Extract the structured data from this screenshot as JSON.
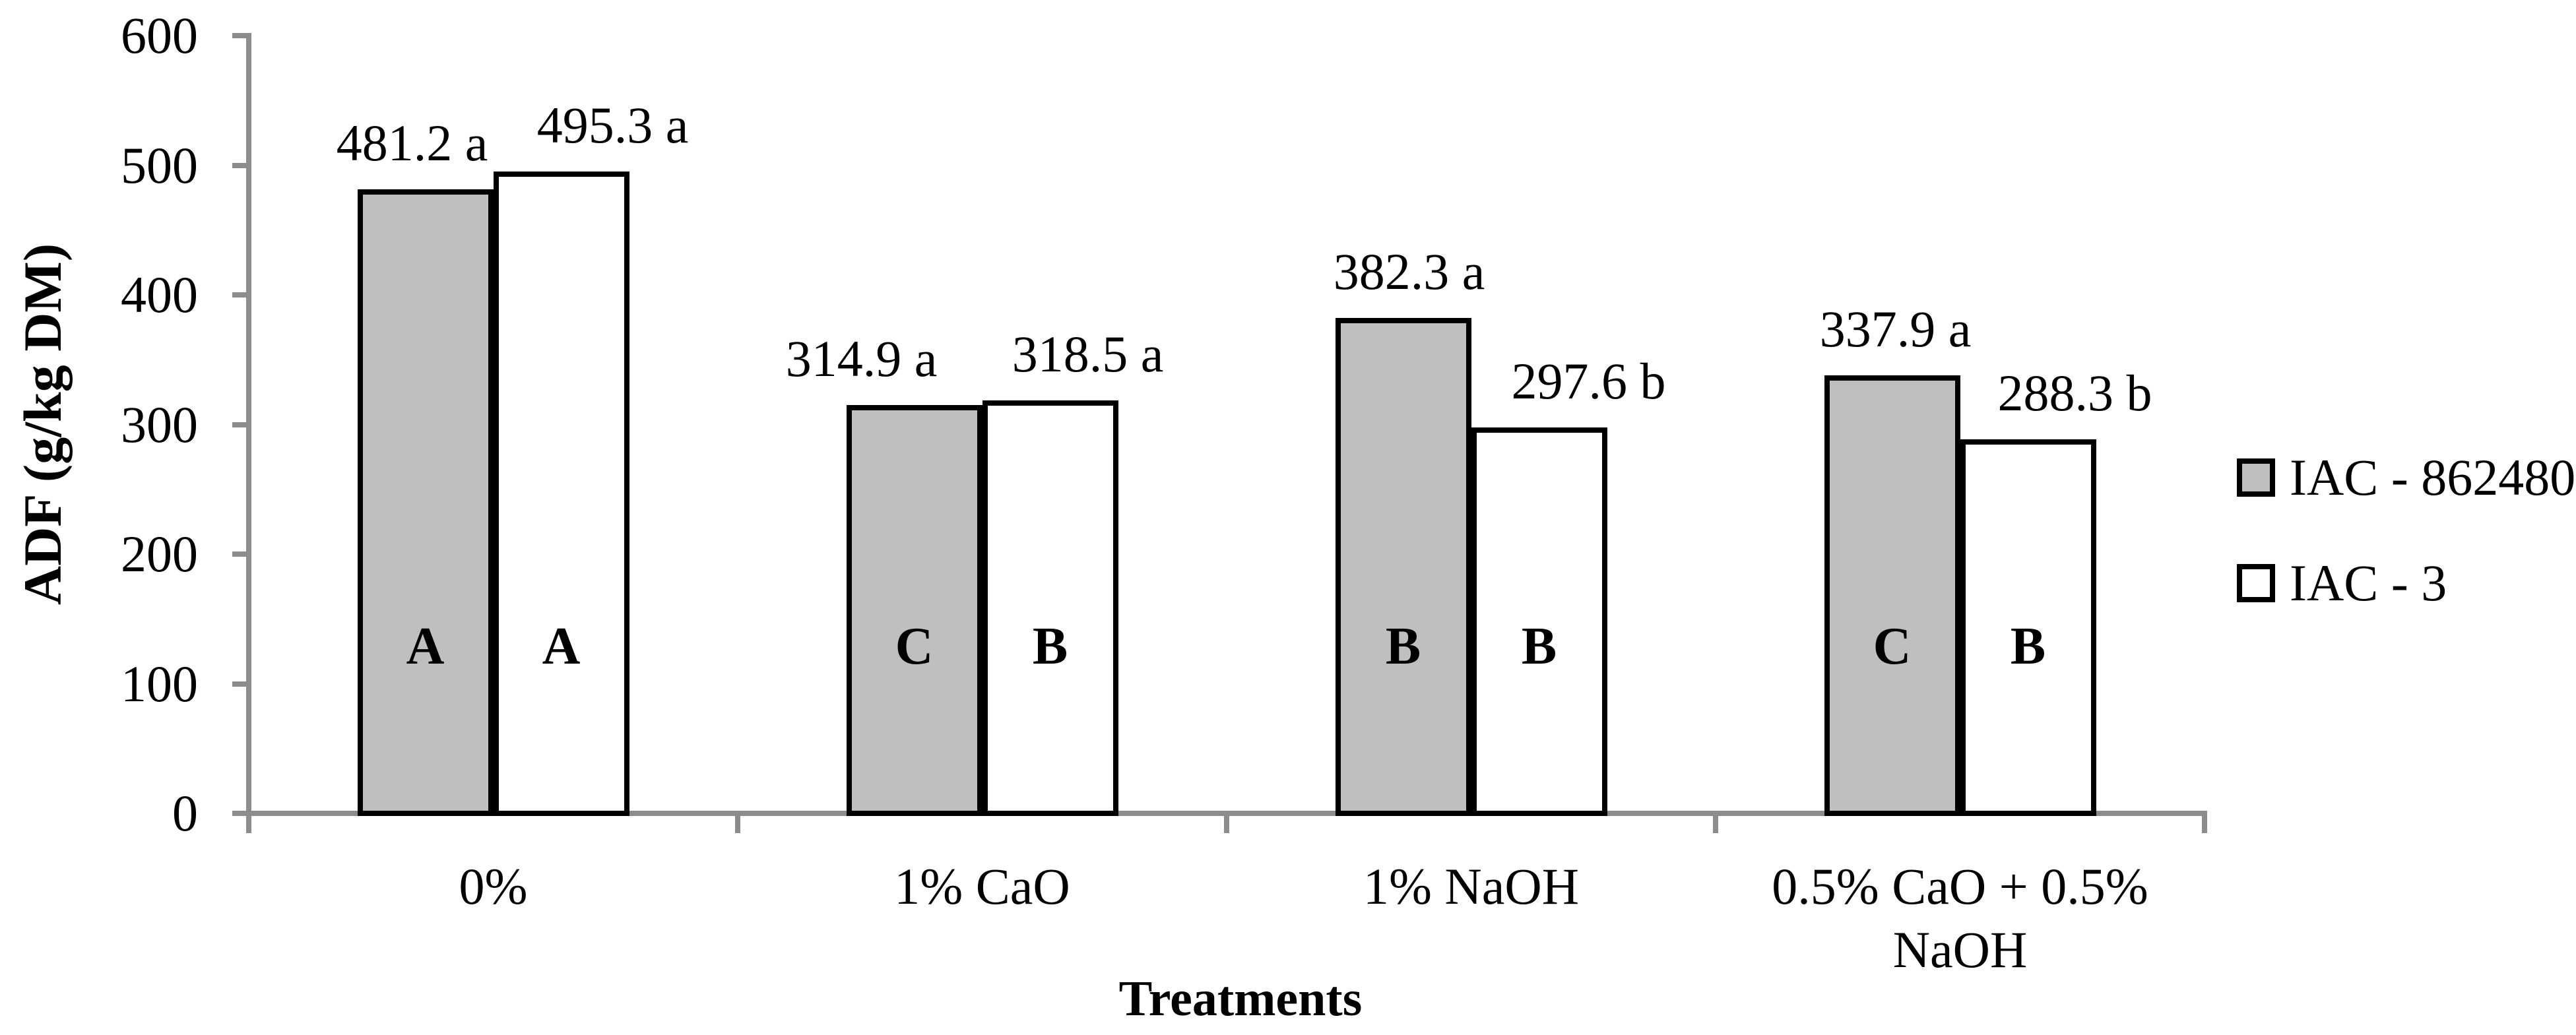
{
  "chart_data": {
    "type": "bar",
    "title": "",
    "xlabel": "Treatments",
    "ylabel": "ADF (g/kg DM)",
    "ylim": [
      0,
      600
    ],
    "yticks": [
      0,
      100,
      200,
      300,
      400,
      500,
      600
    ],
    "grid": false,
    "legend_position": "right",
    "axis_color": "#8c8c8c",
    "bar_border_color": "#000000",
    "categories": [
      "0%",
      "1% CaO",
      "1% NaOH",
      "0.5% CaO + 0.5%\nNaOH"
    ],
    "series": [
      {
        "name": "IAC - 862480",
        "fill": "#bfbfbf",
        "values": [
          481.2,
          314.9,
          382.3,
          337.9
        ],
        "value_labels": [
          "481.2 a",
          "314.9 a",
          "382.3 a",
          "337.9 a"
        ],
        "bar_letters": [
          "A",
          "C",
          "B",
          "C"
        ]
      },
      {
        "name": "IAC - 3",
        "fill": "#ffffff",
        "values": [
          495.3,
          318.5,
          297.6,
          288.3
        ],
        "value_labels": [
          "495.3 a",
          "318.5 a",
          "297.6 b",
          "288.3 b"
        ],
        "bar_letters": [
          "A",
          "B",
          "B",
          "B"
        ]
      }
    ]
  }
}
